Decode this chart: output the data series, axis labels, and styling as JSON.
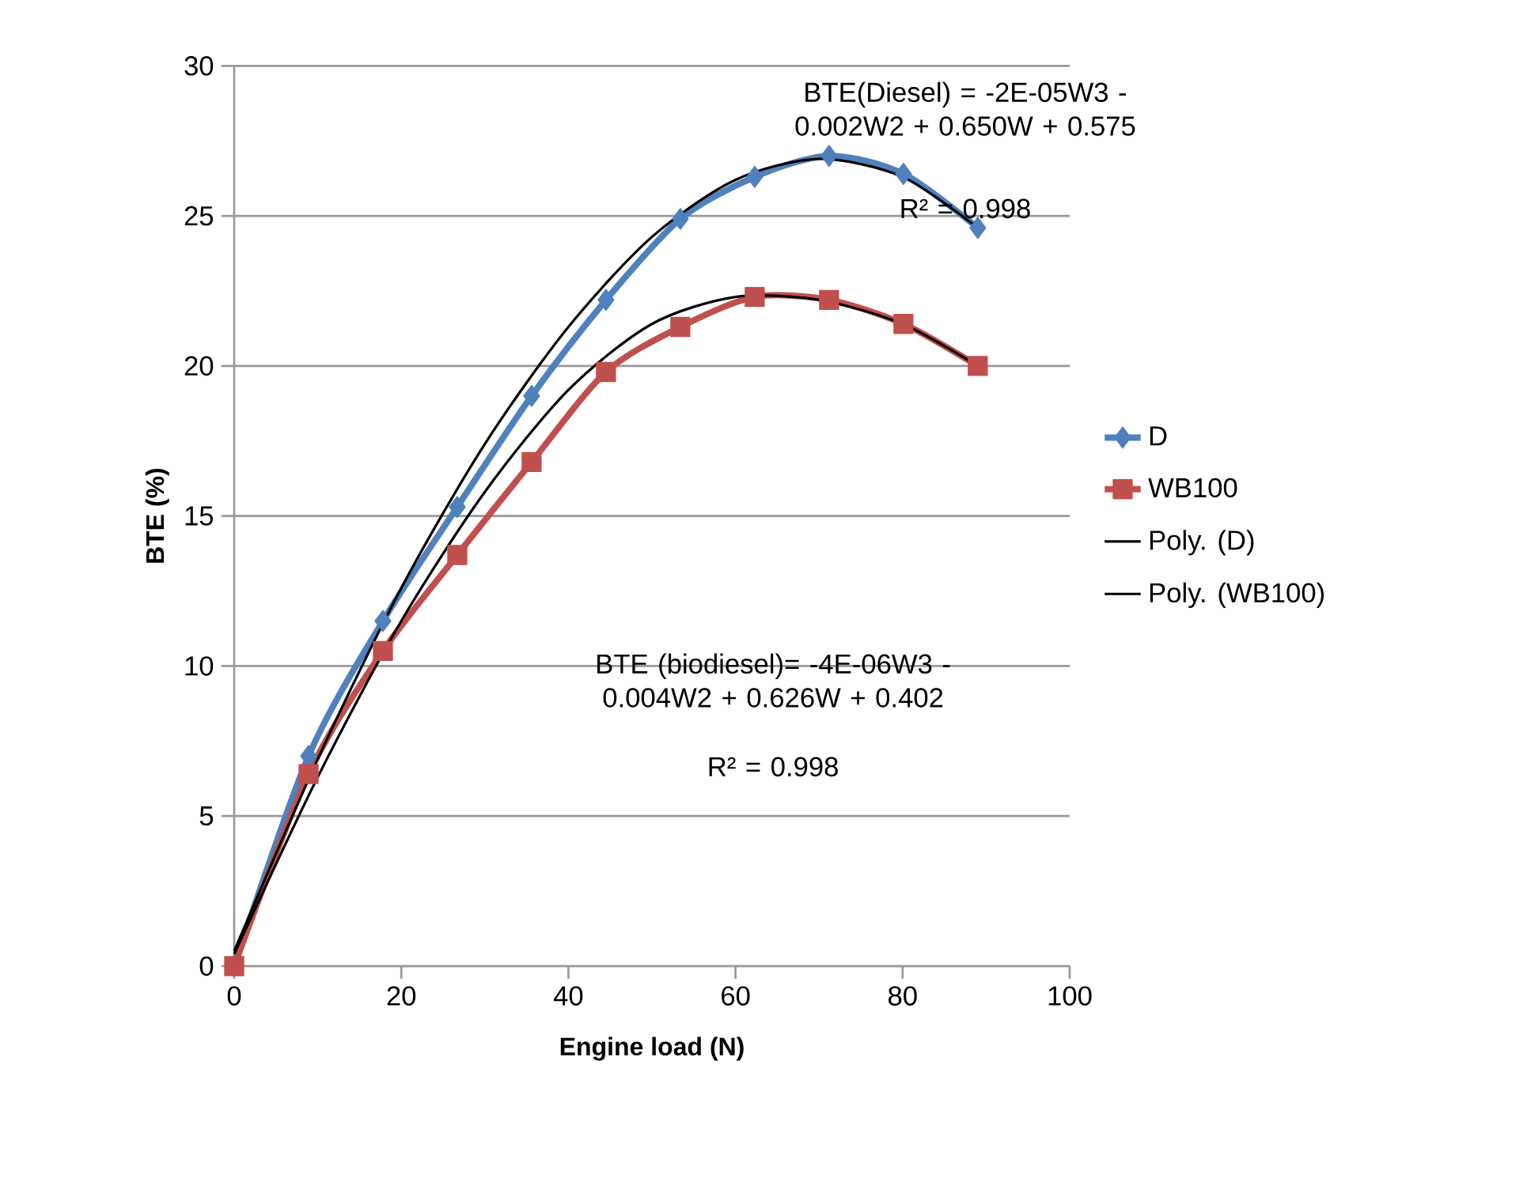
{
  "chart_data": {
    "type": "line",
    "xlabel": "Engine load (N)",
    "ylabel": "BTE (%)",
    "xlim": [
      0,
      100
    ],
    "xticks": [
      0,
      20,
      40,
      60,
      80,
      100
    ],
    "ylim": [
      0,
      30
    ],
    "yticks": [
      0,
      5,
      10,
      15,
      20,
      25,
      30
    ],
    "grid": "y",
    "legend": "right",
    "x": [
      0,
      8.9,
      17.8,
      26.7,
      35.6,
      44.5,
      53.4,
      62.3,
      71.2,
      80.1,
      89
    ],
    "series": [
      {
        "name": "D",
        "color": "#4f81bd",
        "marker": "diamond",
        "values": [
          0,
          7.0,
          11.5,
          15.3,
          19.0,
          22.2,
          24.9,
          26.3,
          27.0,
          26.4,
          24.6
        ]
      },
      {
        "name": "WB100",
        "color": "#c0504d",
        "marker": "square",
        "values": [
          0,
          6.4,
          10.5,
          13.7,
          16.8,
          19.8,
          21.3,
          22.3,
          22.2,
          21.4,
          20.0
        ]
      },
      {
        "name": "Poly. (D)",
        "color": "#000000",
        "marker": "none",
        "x": [
          0,
          10,
          20,
          30,
          40,
          50,
          60,
          70,
          80,
          89
        ],
        "values": [
          0.5,
          6.9,
          12.6,
          17.4,
          21.3,
          24.3,
          26.2,
          26.9,
          26.3,
          24.6
        ]
      },
      {
        "name": "Poly. (WB100)",
        "color": "#000000",
        "marker": "none",
        "x": [
          0,
          10,
          20,
          30,
          40,
          50,
          60,
          70,
          80,
          89
        ],
        "values": [
          0.4,
          6.3,
          11.5,
          15.8,
          19.2,
          21.4,
          22.3,
          22.2,
          21.4,
          20.0
        ]
      }
    ],
    "annotations": [
      "BTE(Diesel) = -2E-05W3 - 0.002W2 + 0.650W + 0.575",
      "R² = 0.998",
      "BTE  (biodiesel)= -4E-06W3 - 0.004W2 + 0.626W + 0.402",
      "R² = 0.998"
    ]
  }
}
